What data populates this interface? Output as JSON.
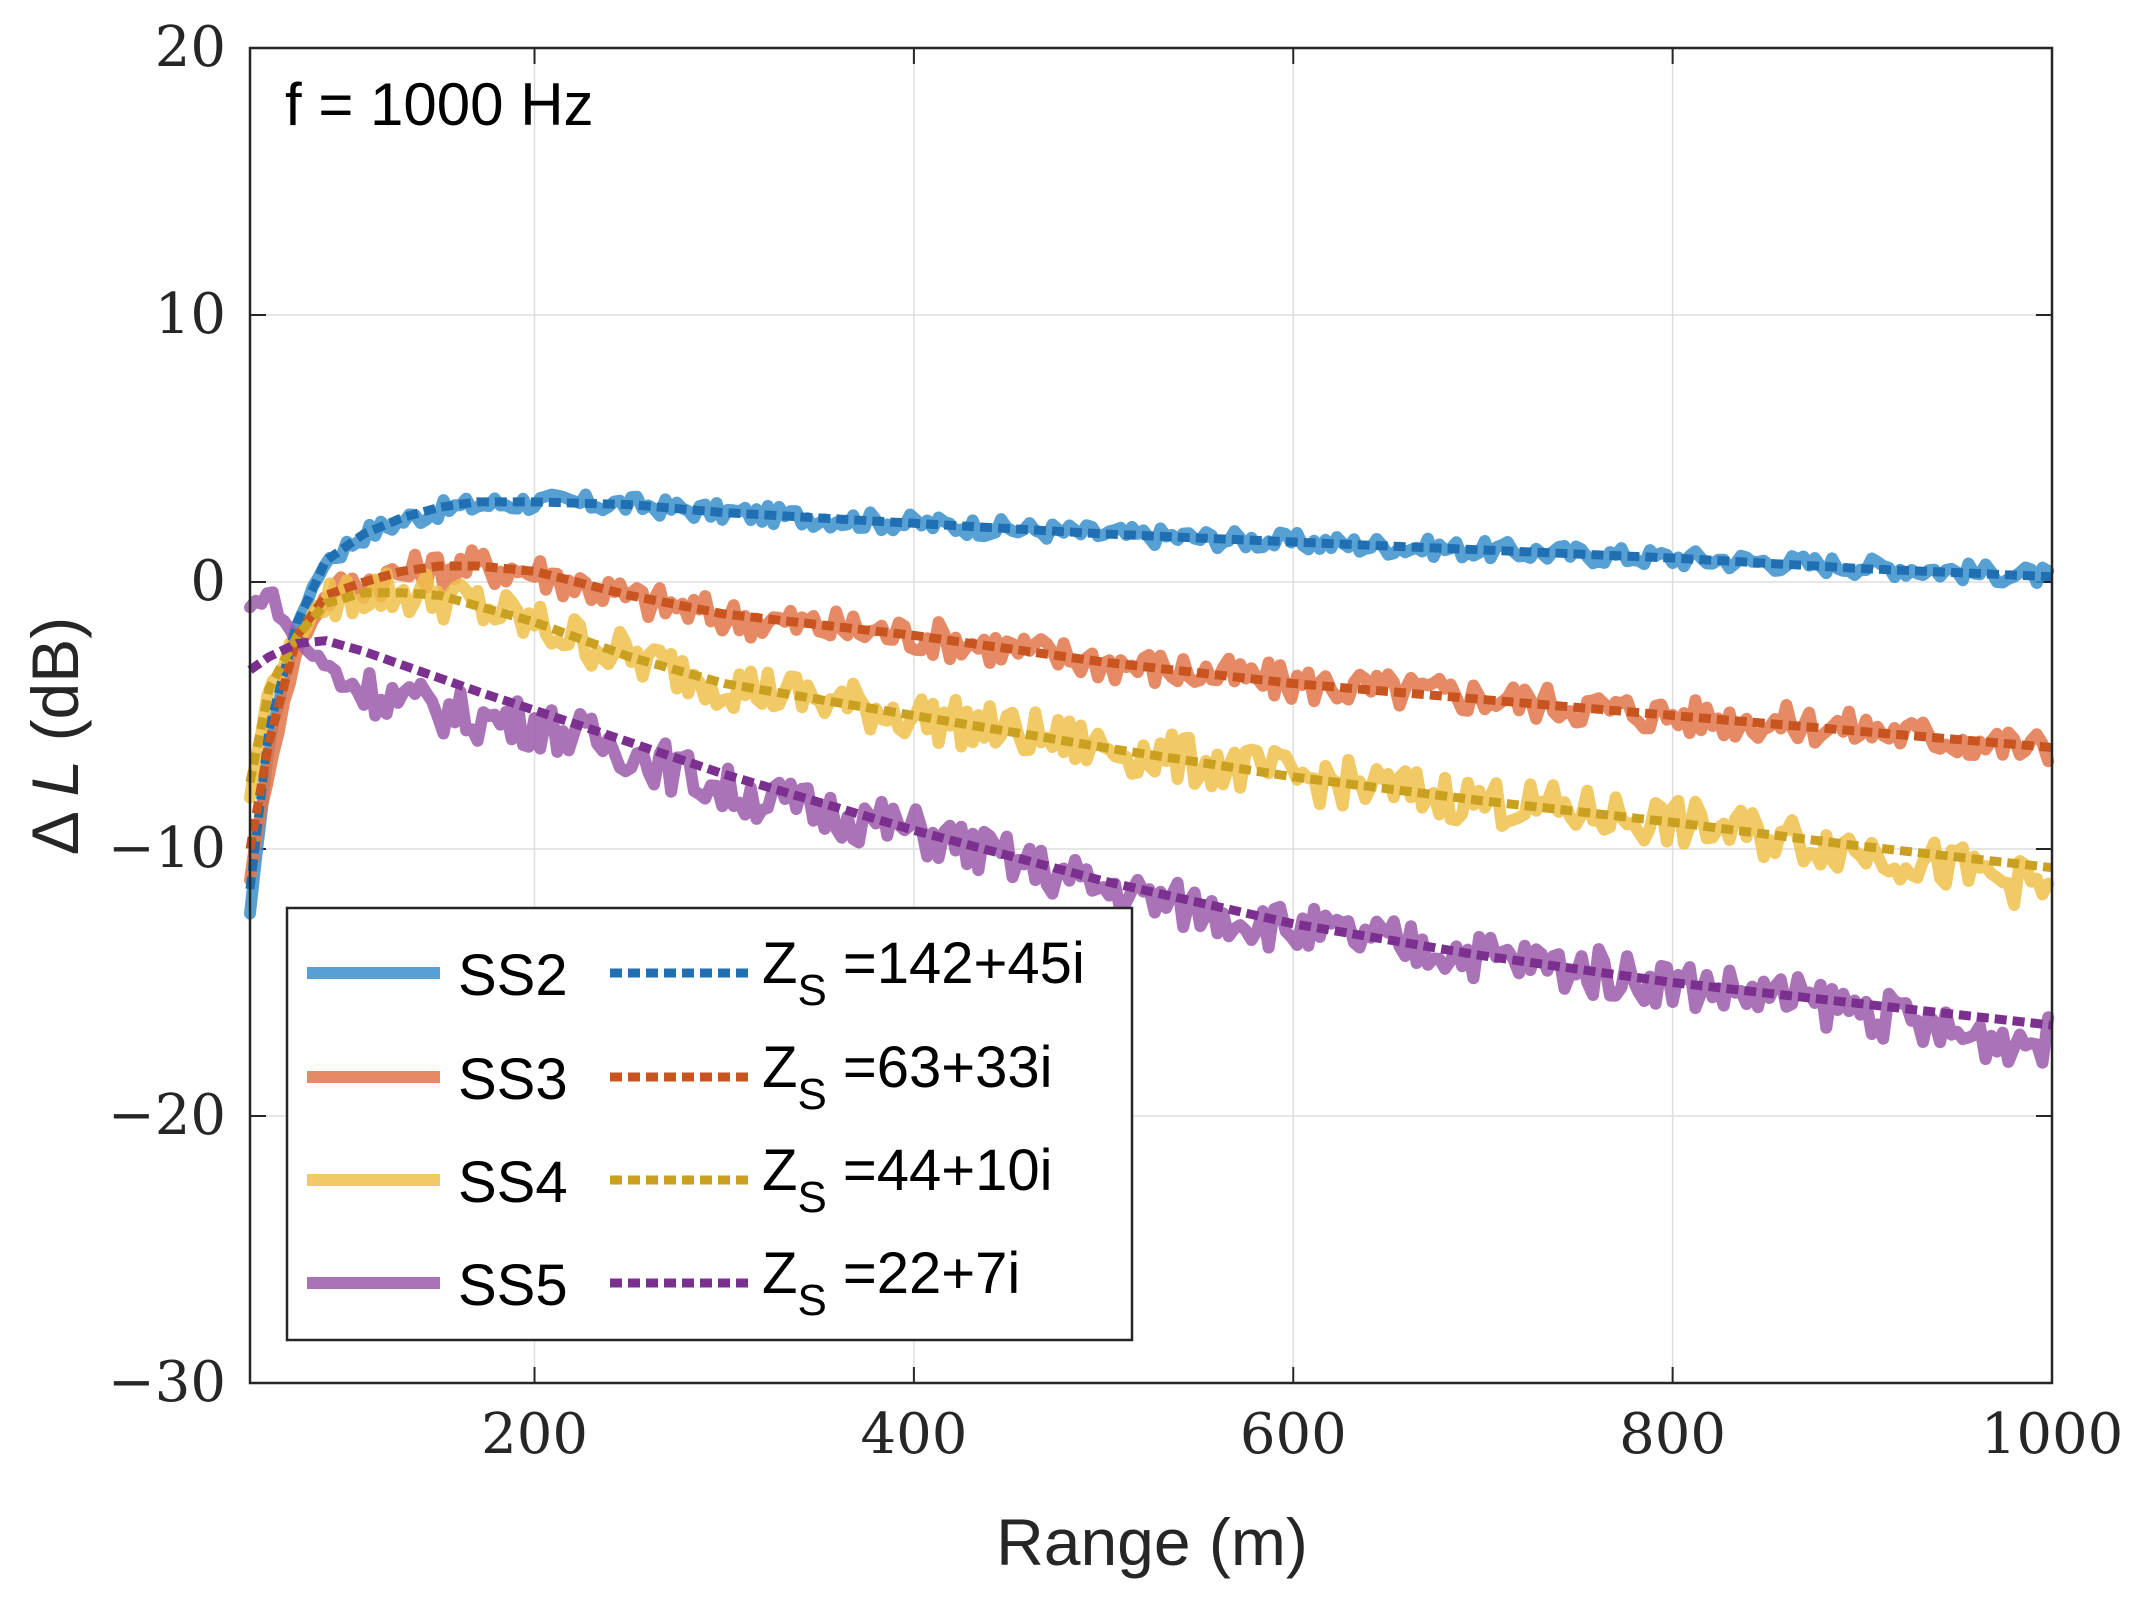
{
  "chart_data": {
    "type": "line",
    "annotation": "f = 1000 Hz",
    "xlabel": "Range (m)",
    "ylabel_prefix": "Δ ",
    "ylabel_var": "L",
    "ylabel_suffix": " (dB)",
    "xlim": [
      50,
      1000
    ],
    "ylim": [
      -30,
      20
    ],
    "xticks": [
      200,
      400,
      600,
      800,
      1000
    ],
    "yticks": [
      -30,
      -20,
      -10,
      0,
      10,
      20
    ],
    "grid": true,
    "legend_position": "bottom-left",
    "measured": [
      {
        "name": "SS2",
        "color": "#3a8fcb",
        "values": [
          [
            50,
            -12.5
          ],
          [
            60,
            -6
          ],
          [
            75,
            -1.5
          ],
          [
            90,
            0.8
          ],
          [
            110,
            1.8
          ],
          [
            130,
            2.3
          ],
          [
            150,
            2.7
          ],
          [
            170,
            2.9
          ],
          [
            200,
            3.0
          ],
          [
            250,
            2.9
          ],
          [
            300,
            2.6
          ],
          [
            400,
            2.2
          ],
          [
            500,
            1.8
          ],
          [
            600,
            1.5
          ],
          [
            700,
            1.2
          ],
          [
            800,
            0.9
          ],
          [
            900,
            0.6
          ],
          [
            1000,
            0.2
          ]
        ]
      },
      {
        "name": "SS3",
        "color": "#e2764a",
        "values": [
          [
            50,
            -11
          ],
          [
            60,
            -7
          ],
          [
            75,
            -2.5
          ],
          [
            90,
            -0.5
          ],
          [
            110,
            0
          ],
          [
            130,
            0.3
          ],
          [
            150,
            0.5
          ],
          [
            170,
            0.6
          ],
          [
            200,
            0.4
          ],
          [
            250,
            -0.6
          ],
          [
            300,
            -1.3
          ],
          [
            400,
            -2
          ],
          [
            500,
            -3
          ],
          [
            600,
            -3.8
          ],
          [
            700,
            -4.3
          ],
          [
            800,
            -5
          ],
          [
            900,
            -5.5
          ],
          [
            1000,
            -6.3
          ]
        ]
      },
      {
        "name": "SS4",
        "color": "#efc04a",
        "values": [
          [
            50,
            -8
          ],
          [
            60,
            -4
          ],
          [
            75,
            -2
          ],
          [
            90,
            -0.8
          ],
          [
            110,
            -0.3
          ],
          [
            130,
            -0.4
          ],
          [
            150,
            -0.5
          ],
          [
            170,
            -0.9
          ],
          [
            200,
            -1.6
          ],
          [
            250,
            -2.8
          ],
          [
            300,
            -3.8
          ],
          [
            400,
            -5
          ],
          [
            500,
            -6.2
          ],
          [
            600,
            -7.3
          ],
          [
            700,
            -8.2
          ],
          [
            800,
            -9
          ],
          [
            900,
            -10
          ],
          [
            1000,
            -11.5
          ]
        ]
      },
      {
        "name": "SS5",
        "color": "#9b5aaa",
        "values": [
          [
            50,
            -1
          ],
          [
            60,
            -0.3
          ],
          [
            70,
            -1.8
          ],
          [
            80,
            -2.5
          ],
          [
            95,
            -3.5
          ],
          [
            110,
            -4
          ],
          [
            130,
            -4.4
          ],
          [
            150,
            -4.8
          ],
          [
            170,
            -5.1
          ],
          [
            200,
            -5.3
          ],
          [
            250,
            -6.3
          ],
          [
            300,
            -7.8
          ],
          [
            400,
            -9.3
          ],
          [
            500,
            -11.5
          ],
          [
            600,
            -13
          ],
          [
            700,
            -14
          ],
          [
            800,
            -15
          ],
          [
            900,
            -16
          ],
          [
            950,
            -17
          ],
          [
            1000,
            -17.2
          ]
        ]
      }
    ],
    "model": [
      {
        "name": "Z_S =142+45i",
        "Z": "Z",
        "sub": "S",
        "rest": " =142+45i",
        "color": "#1f6fb2",
        "values": [
          [
            50,
            -11.5
          ],
          [
            60,
            -5.5
          ],
          [
            75,
            -1.5
          ],
          [
            90,
            0.8
          ],
          [
            110,
            1.8
          ],
          [
            130,
            2.4
          ],
          [
            150,
            2.8
          ],
          [
            170,
            3.0
          ],
          [
            200,
            3.0
          ],
          [
            250,
            2.9
          ],
          [
            300,
            2.6
          ],
          [
            400,
            2.2
          ],
          [
            500,
            1.8
          ],
          [
            600,
            1.5
          ],
          [
            700,
            1.2
          ],
          [
            800,
            0.9
          ],
          [
            900,
            0.5
          ],
          [
            1000,
            0.2
          ]
        ]
      },
      {
        "name": "Z_S =63+33i",
        "Z": "Z",
        "sub": "S",
        "rest": " =63+33i",
        "color": "#c8541f",
        "values": [
          [
            50,
            -10
          ],
          [
            60,
            -6
          ],
          [
            75,
            -2
          ],
          [
            90,
            -0.5
          ],
          [
            110,
            0
          ],
          [
            130,
            0.4
          ],
          [
            150,
            0.6
          ],
          [
            170,
            0.6
          ],
          [
            200,
            0.4
          ],
          [
            250,
            -0.5
          ],
          [
            300,
            -1.2
          ],
          [
            400,
            -2
          ],
          [
            500,
            -3
          ],
          [
            600,
            -3.8
          ],
          [
            700,
            -4.4
          ],
          [
            800,
            -5
          ],
          [
            900,
            -5.6
          ],
          [
            1000,
            -6.2
          ]
        ]
      },
      {
        "name": "Z_S =44+10i",
        "Z": "Z",
        "sub": "S",
        "rest": " =44+10i",
        "color": "#c9a020",
        "values": [
          [
            50,
            -7.5
          ],
          [
            60,
            -4
          ],
          [
            75,
            -2
          ],
          [
            90,
            -0.8
          ],
          [
            110,
            -0.4
          ],
          [
            130,
            -0.4
          ],
          [
            150,
            -0.5
          ],
          [
            170,
            -0.9
          ],
          [
            200,
            -1.5
          ],
          [
            250,
            -2.8
          ],
          [
            300,
            -3.8
          ],
          [
            400,
            -5
          ],
          [
            500,
            -6.2
          ],
          [
            600,
            -7.3
          ],
          [
            700,
            -8.2
          ],
          [
            800,
            -9
          ],
          [
            900,
            -9.9
          ],
          [
            1000,
            -10.7
          ]
        ]
      },
      {
        "name": "Z_S =22+7i",
        "Z": "Z",
        "sub": "S",
        "rest": " =22+7i",
        "color": "#7b2f8e",
        "values": [
          [
            50,
            -3.3
          ],
          [
            60,
            -2.8
          ],
          [
            75,
            -2.3
          ],
          [
            90,
            -2.2
          ],
          [
            110,
            -2.6
          ],
          [
            130,
            -3.1
          ],
          [
            150,
            -3.6
          ],
          [
            170,
            -4.1
          ],
          [
            200,
            -4.8
          ],
          [
            250,
            -6
          ],
          [
            300,
            -7.2
          ],
          [
            400,
            -9.3
          ],
          [
            500,
            -11.2
          ],
          [
            600,
            -12.8
          ],
          [
            700,
            -14
          ],
          [
            800,
            -15
          ],
          [
            900,
            -15.8
          ],
          [
            1000,
            -16.6
          ]
        ]
      }
    ]
  }
}
